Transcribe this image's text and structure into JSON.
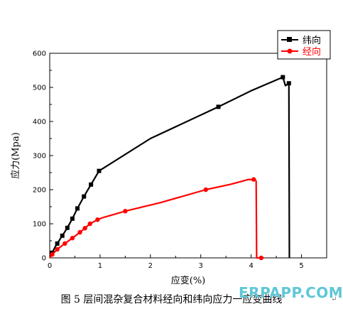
{
  "chart_data": {
    "type": "line",
    "xlabel": "应变(%)",
    "ylabel": "应力(Mpa)",
    "xlim": [
      0,
      5.5
    ],
    "ylim": [
      0,
      600
    ],
    "x_ticks": [
      "0",
      "1",
      "2",
      "3",
      "4",
      "5"
    ],
    "y_ticks": [
      "0",
      "100",
      "200",
      "300",
      "400",
      "500",
      "600"
    ],
    "legend_position": "top-right",
    "series": [
      {
        "name": "纬向",
        "color": "#000000",
        "marker": "square",
        "points": [
          [
            0,
            0
          ],
          [
            0.05,
            15
          ],
          [
            0.1,
            30
          ],
          [
            0.15,
            42
          ],
          [
            0.25,
            65
          ],
          [
            0.35,
            88
          ],
          [
            0.45,
            115
          ],
          [
            0.55,
            145
          ],
          [
            0.68,
            180
          ],
          [
            0.82,
            215
          ],
          [
            0.98,
            255
          ],
          [
            2.0,
            350
          ],
          [
            3.35,
            443
          ],
          [
            4.0,
            490
          ],
          [
            4.63,
            530
          ],
          [
            4.68,
            505
          ],
          [
            4.75,
            512
          ],
          [
            4.76,
            0
          ]
        ],
        "marker_points": [
          [
            0.05,
            15
          ],
          [
            0.15,
            42
          ],
          [
            0.25,
            65
          ],
          [
            0.35,
            88
          ],
          [
            0.45,
            115
          ],
          [
            0.55,
            145
          ],
          [
            0.68,
            180
          ],
          [
            0.82,
            215
          ],
          [
            0.98,
            255
          ],
          [
            3.35,
            443
          ],
          [
            4.63,
            530
          ],
          [
            4.75,
            512
          ]
        ]
      },
      {
        "name": "经向",
        "color": "#ff0000",
        "marker": "circle",
        "points": [
          [
            0,
            0
          ],
          [
            0.05,
            10
          ],
          [
            0.15,
            25
          ],
          [
            0.3,
            42
          ],
          [
            0.45,
            58
          ],
          [
            0.6,
            75
          ],
          [
            0.7,
            87
          ],
          [
            0.8,
            100
          ],
          [
            0.95,
            112
          ],
          [
            1.05,
            118
          ],
          [
            1.5,
            137
          ],
          [
            2.2,
            162
          ],
          [
            3.1,
            200
          ],
          [
            3.6,
            216
          ],
          [
            3.95,
            230
          ],
          [
            4.08,
            229
          ],
          [
            4.1,
            225
          ],
          [
            4.11,
            0
          ],
          [
            4.25,
            0
          ]
        ],
        "marker_points": [
          [
            0.05,
            10
          ],
          [
            0.15,
            25
          ],
          [
            0.3,
            42
          ],
          [
            0.45,
            58
          ],
          [
            0.6,
            75
          ],
          [
            0.7,
            87
          ],
          [
            0.8,
            100
          ],
          [
            0.95,
            112
          ],
          [
            1.5,
            137
          ],
          [
            3.1,
            200
          ],
          [
            4.05,
            230
          ],
          [
            4.2,
            0
          ]
        ]
      }
    ]
  },
  "caption": "图 5 层间混杂复合材料经向和纬向应力一应变曲线",
  "enter_mark": "↵",
  "watermark": "ERPAPP.COM"
}
